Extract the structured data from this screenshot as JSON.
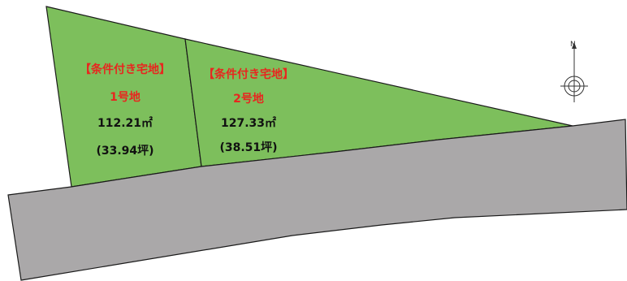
{
  "lots": [
    {
      "condition": "【条件付き宅地】",
      "number": "1号地",
      "area": "112.21㎡",
      "tsubo": "(33.94坪)"
    },
    {
      "condition": "【条件付き宅地】",
      "number": "2号地",
      "area": "127.33㎡",
      "tsubo": "(38.51坪)"
    }
  ],
  "compass": {
    "north_label": "N"
  },
  "colors": {
    "lot_fill": "#7dbf5c",
    "road_fill": "#aaa8a9",
    "outline": "#1a1a1a",
    "label_red": "#e8261f"
  }
}
